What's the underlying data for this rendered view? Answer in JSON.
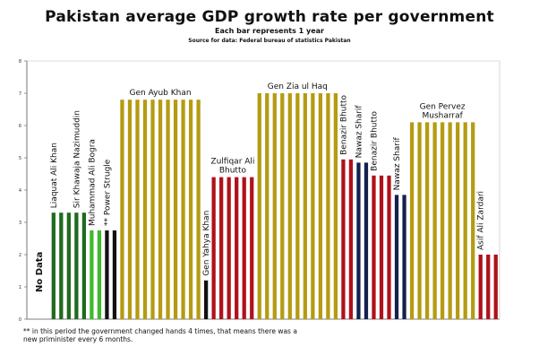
{
  "title": "Pakistan average GDP growth rate per government",
  "subtitle": "Each bar represents 1 year",
  "source": "Source for data: Federal bureau of statistics Pakistan",
  "footnote": "** in this period the government changed hands 4 times, that means there was a new priminister every 6 months.",
  "no_data_label": "No Data",
  "colors": {
    "dark_green": "#1f6a1f",
    "light_green": "#3dba2c",
    "black": "#111111",
    "gold": "#b49b12",
    "red": "#b0111a",
    "navy": "#14214f"
  },
  "chart_data": {
    "type": "bar",
    "title": "Pakistan average GDP growth rate per government",
    "ylim": [
      0,
      8
    ],
    "yticks": [
      0,
      1,
      2,
      3,
      4,
      5,
      6,
      7,
      8
    ],
    "ylabel": "",
    "xlabel": "",
    "governments": [
      {
        "name": "",
        "years": 3,
        "value": null,
        "color": "none"
      },
      {
        "name": "Liaquat Ali Khan",
        "years": 3,
        "value": 3.3,
        "color": "dark_green"
      },
      {
        "name": "Sir Khawaja Nazimuddin",
        "years": 2,
        "value": 3.3,
        "color": "dark_green"
      },
      {
        "name": "Muhammad Ali Bogra",
        "years": 2,
        "value": 2.75,
        "color": "light_green"
      },
      {
        "name": "** Power Strugle",
        "years": 2,
        "value": 2.75,
        "color": "black"
      },
      {
        "name": "Gen Ayub Khan",
        "years": 11,
        "value": 6.8,
        "color": "gold"
      },
      {
        "name": "Gen Yahya Khan",
        "years": 1,
        "value": 1.2,
        "color": "black"
      },
      {
        "name": "Zulfiqar Ali Bhutto",
        "years": 6,
        "value": 4.4,
        "color": "red"
      },
      {
        "name": "Gen Zia ul Haq",
        "years": 11,
        "value": 7.0,
        "color": "gold"
      },
      {
        "name": "Benazir Bhutto",
        "years": 2,
        "value": 4.95,
        "color": "red"
      },
      {
        "name": "Nawaz Sharif",
        "years": 2,
        "value": 4.85,
        "color": "navy"
      },
      {
        "name": "Benazir Bhutto",
        "years": 3,
        "value": 4.45,
        "color": "red"
      },
      {
        "name": "Nawaz Sharif",
        "years": 2,
        "value": 3.85,
        "color": "navy"
      },
      {
        "name": "Gen Pervez Musharraf",
        "years": 9,
        "value": 6.1,
        "color": "gold"
      },
      {
        "name": "Asif Ali Zardari",
        "years": 3,
        "value": 2.0,
        "color": "red"
      }
    ]
  }
}
